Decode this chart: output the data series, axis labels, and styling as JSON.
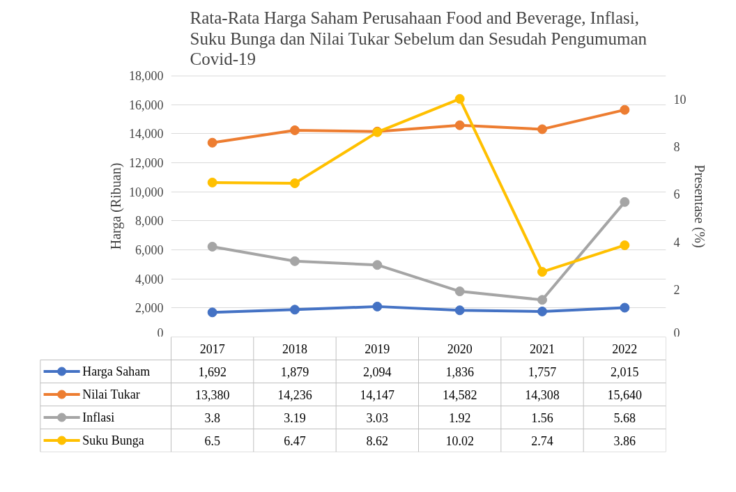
{
  "chart_data": {
    "type": "line",
    "title": "Rata-Rata Harga Saham Perusahaan Food and Beverage, Inflasi,\nSuku Bunga dan Nilai Tukar Sebelum dan Sesudah Pengumuman\nCovid-19",
    "ylabel": "Harga (Ribuan)",
    "y2label": "Presentase (%)",
    "categories": [
      "2017",
      "2018",
      "2019",
      "2020",
      "2021",
      "2022"
    ],
    "ylim": [
      0,
      18000
    ],
    "yticks": [
      0,
      {
        "value": 2000,
        "label": "2,000"
      },
      {
        "value": 4000,
        "label": "4,000"
      },
      {
        "value": 6000,
        "label": "6,000"
      },
      {
        "value": 8000,
        "label": "8,000"
      },
      {
        "value": 10000,
        "label": "10,000"
      },
      {
        "value": 12000,
        "label": "12,000"
      },
      {
        "value": 14000,
        "label": "14,000"
      },
      {
        "value": 16000,
        "label": "16,000"
      },
      {
        "value": 18000,
        "label": "18,000"
      }
    ],
    "y2lim": [
      0,
      11
    ],
    "y2ticks": [
      0,
      2,
      4,
      6,
      8,
      10
    ],
    "grid": "y",
    "legend": "bottom",
    "marker": "circle",
    "series": [
      {
        "name": "Harga Saham",
        "color": "#4472c4",
        "values": [
          1692,
          1879,
          2094,
          1836,
          1757,
          2015
        ],
        "value_labels": [
          "1,692",
          "1,879",
          "2,094",
          "1,836",
          "1,757",
          "2,015"
        ]
      },
      {
        "name": "Nilai Tukar",
        "color": "#ed7d31",
        "values": [
          13380,
          14236,
          14147,
          14582,
          14308,
          15640
        ],
        "value_labels": [
          "13,380",
          "14,236",
          "14,147",
          "14,582",
          "14,308",
          "15,640"
        ]
      },
      {
        "name": "Inflasi",
        "color": "#a5a5a5",
        "axis": "y2",
        "values": [
          3.8,
          3.19,
          3.03,
          1.92,
          1.56,
          5.68
        ],
        "value_labels": [
          "3.8",
          "3.19",
          "3.03",
          "1.92",
          "1.56",
          "5.68"
        ]
      },
      {
        "name": "Suku Bunga",
        "color": "#ffc000",
        "axis": "y2",
        "values": [
          6.5,
          6.47,
          8.62,
          10.02,
          2.74,
          3.86
        ],
        "value_labels": [
          "6.5",
          "6.47",
          "8.62",
          "10.02",
          "2.74",
          "3.86"
        ]
      }
    ]
  }
}
